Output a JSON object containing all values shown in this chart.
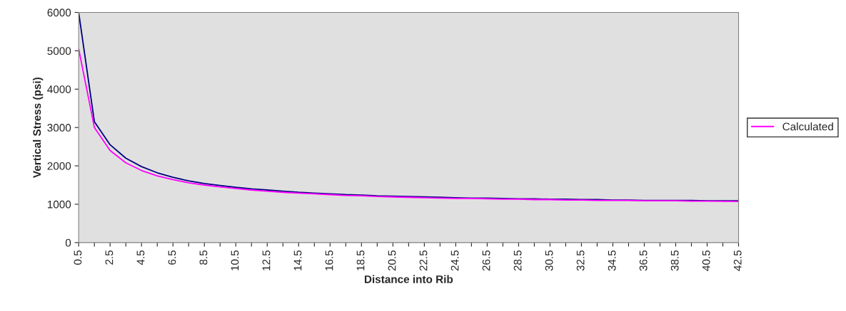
{
  "chart_data": {
    "type": "line",
    "xlabel": "Distance into Rib",
    "ylabel": "Vertical Stress (psi)",
    "categories": [
      "0.5",
      null,
      "2.5",
      null,
      "4.5",
      null,
      "6.5",
      null,
      "8.5",
      null,
      "10.5",
      null,
      "12.5",
      null,
      "14.5",
      null,
      "16.5",
      null,
      "18.5",
      null,
      "20.5",
      null,
      "22.5",
      null,
      "24.5",
      null,
      "26.5",
      null,
      "28.5",
      null,
      "30.5",
      null,
      "32.5",
      null,
      "34.5",
      null,
      "36.5",
      null,
      "38.5",
      null,
      "40.5",
      null,
      "42.5"
    ],
    "series": [
      {
        "color": "#000080",
        "values": [
          6000,
          3150,
          2550,
          2200,
          1980,
          1820,
          1700,
          1610,
          1540,
          1490,
          1440,
          1400,
          1370,
          1340,
          1310,
          1290,
          1270,
          1250,
          1240,
          1220,
          1210,
          1200,
          1190,
          1180,
          1170,
          1160,
          1160,
          1150,
          1140,
          1140,
          1130,
          1130,
          1120,
          1120,
          1110,
          1110,
          1100,
          1100,
          1100,
          1100,
          1090,
          1090,
          1090
        ]
      },
      {
        "name": "Calculated",
        "color": "#ff00ff",
        "values": [
          5050,
          3000,
          2400,
          2080,
          1880,
          1740,
          1640,
          1560,
          1500,
          1450,
          1410,
          1370,
          1340,
          1310,
          1290,
          1270,
          1250,
          1230,
          1220,
          1200,
          1190,
          1180,
          1170,
          1160,
          1150,
          1150,
          1140,
          1130,
          1130,
          1120,
          1120,
          1110,
          1110,
          1100,
          1100,
          1100,
          1090,
          1090,
          1090,
          1080,
          1080,
          1075,
          1070
        ]
      }
    ],
    "ylim": [
      0,
      6000
    ],
    "yticks": [
      0,
      1000,
      2000,
      3000,
      4000,
      5000,
      6000
    ],
    "grid": false,
    "legend": "right",
    "marker": "none",
    "line_style": "solid"
  }
}
